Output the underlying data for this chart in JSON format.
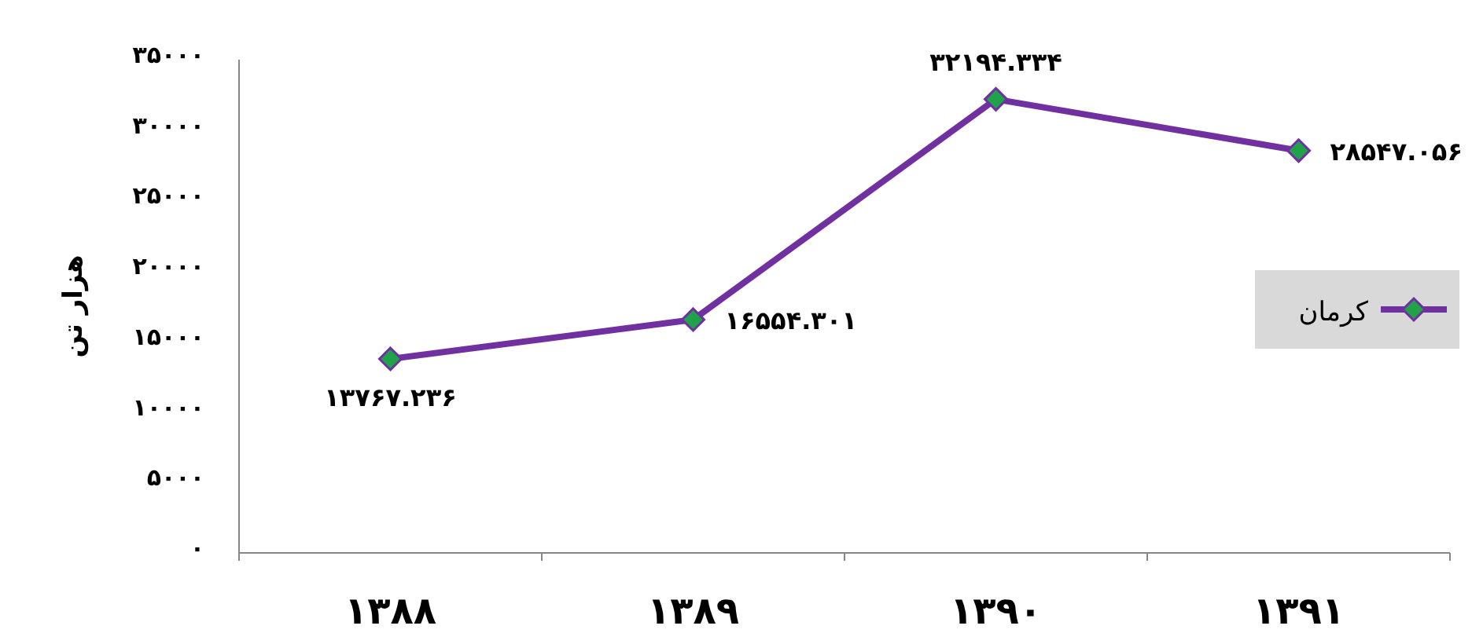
{
  "chart_data": {
    "type": "line",
    "ylabel": "هزار تن",
    "categories": [
      "۱۳۸۸",
      "۱۳۸۹",
      "۱۳۹۰",
      "۱۳۹۱"
    ],
    "series": [
      {
        "name": "کرمان",
        "color": "#7030a0",
        "values": [
          13767.236,
          16554.301,
          32194.334,
          28547.056
        ],
        "value_labels": [
          "۱۳۷۶۷.۲۳۶",
          "۱۶۵۵۴.۳۰۱",
          "۳۲۱۹۴.۳۳۴",
          "۲۸۵۴۷.۰۵۶"
        ]
      }
    ],
    "ylim": [
      0,
      35000
    ],
    "yticks": [
      {
        "value": 0,
        "label": "۰"
      },
      {
        "value": 5000,
        "label": "۵۰۰۰"
      },
      {
        "value": 10000,
        "label": "۱۰۰۰۰"
      },
      {
        "value": 15000,
        "label": "۱۵۰۰۰"
      },
      {
        "value": 20000,
        "label": "۲۰۰۰۰"
      },
      {
        "value": 25000,
        "label": "۲۵۰۰۰"
      },
      {
        "value": 30000,
        "label": "۳۰۰۰۰"
      },
      {
        "value": 35000,
        "label": "۳۵۰۰۰"
      }
    ],
    "grid": false,
    "legend": "right",
    "marker": "diamond",
    "line_style": "solid"
  }
}
